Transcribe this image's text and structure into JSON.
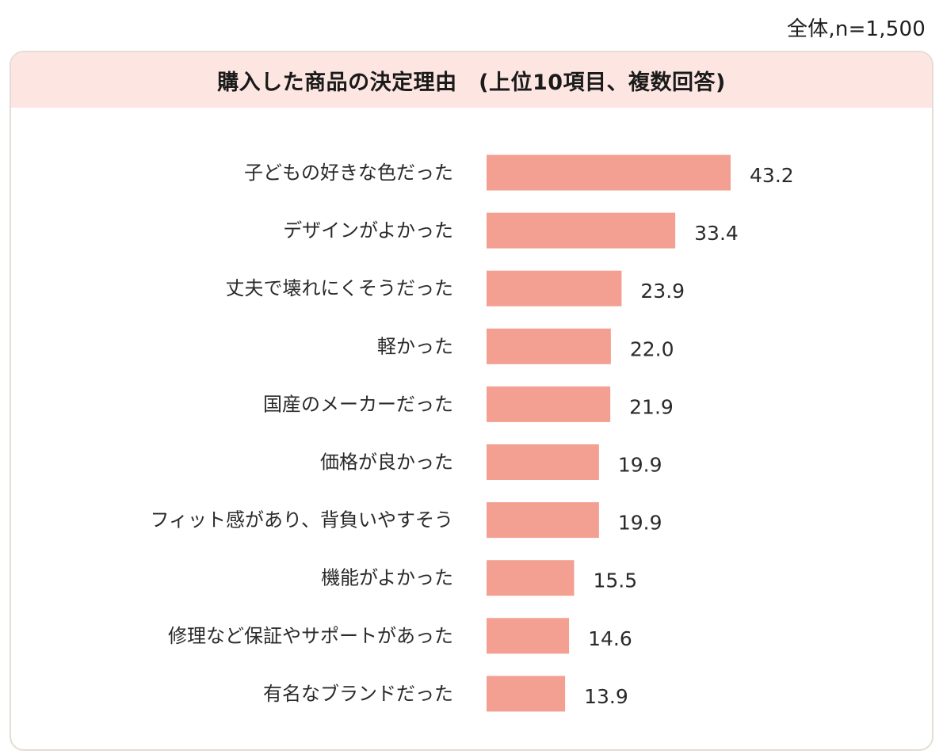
{
  "note": "全体,n=1,500",
  "chart_data": {
    "type": "bar",
    "orientation": "horizontal",
    "title": "購入した商品の決定理由　(上位10項目、複数回答)",
    "categories": [
      "子どもの好きな色だった",
      "デザインがよかった",
      "丈夫で壊れにくそうだった",
      "軽かった",
      "国産のメーカーだった",
      "価格が良かった",
      "フィット感があり、背負いやすそう",
      "機能がよかった",
      "修理など保証やサポートがあった",
      "有名なブランドだった"
    ],
    "values": [
      43.2,
      33.4,
      23.9,
      22.0,
      21.9,
      19.9,
      19.9,
      15.5,
      14.6,
      13.9
    ],
    "value_labels": [
      "43.2",
      "33.4",
      "23.9",
      "22.0",
      "21.9",
      "19.9",
      "19.9",
      "15.5",
      "14.6",
      "13.9"
    ],
    "bar_color": "#f3a092",
    "xlim": [
      0,
      50
    ],
    "grid": false,
    "legend": "none"
  }
}
